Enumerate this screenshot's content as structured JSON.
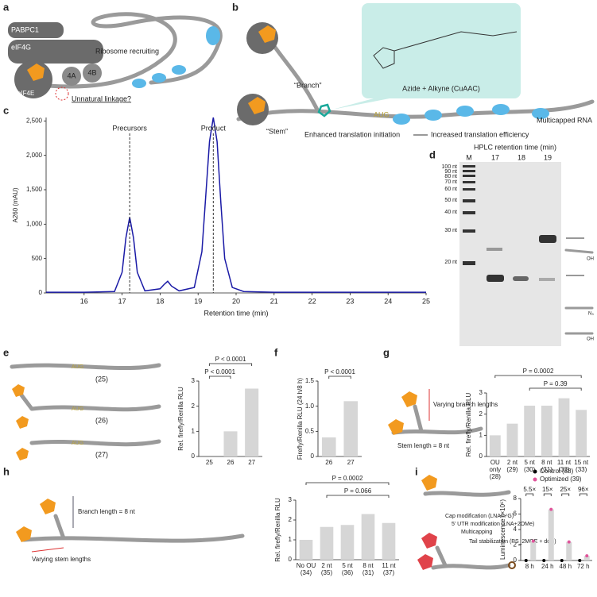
{
  "panel_labels": [
    "a",
    "b",
    "c",
    "d",
    "e",
    "f",
    "g",
    "h",
    "i"
  ],
  "a": {
    "pabpc1": "PABPC1",
    "eif4g": "eIF4G",
    "eif4e": "eIF4E",
    "a4": "4A",
    "b4": "4B",
    "ribosome": "Ribosome recruiting",
    "question": "Unnatural linkage?"
  },
  "b": {
    "branch": "“Branch”",
    "stem": "“Stem”",
    "aug": "AUG",
    "chem": "Azide + Alkyne (CuAAC)",
    "rna": "Multicapped RNA",
    "result1": "Enhanced translation initiation",
    "result2": "Increased translation efficiency"
  },
  "d": {
    "title": "HPLC retention time (min)",
    "lanes": [
      "M",
      "17",
      "18",
      "19"
    ],
    "ladder": [
      "100 nt",
      "90 nt",
      "80 nt",
      "70 nt",
      "60 nt",
      "50 nt",
      "40 nt",
      "30 nt",
      "20 nt"
    ],
    "oh": "OH",
    "n3": "N₃"
  },
  "e": {
    "constructs": [
      "(25)",
      "(26)",
      "(27)"
    ],
    "aug": "AUG"
  },
  "g": {
    "branch": "Varying branch lengths",
    "stem": "Stem length = 8 nt"
  },
  "h": {
    "branch": "Branch length = 8 nt",
    "stem": "Varying stem lengths"
  },
  "i": {
    "steps": [
      "Cap modification (LNAm⁷G)",
      "5′ UTR modification (LNA+2OMe)",
      "Multicapping",
      "Tail stabilization (PS_2MOE + ddC)"
    ]
  },
  "chart_data": [
    {
      "type": "line",
      "xlabel": "Retention time (min)",
      "ylabel": "A260 (mAU)",
      "x": [
        15,
        16,
        16.8,
        17,
        17.1,
        17.2,
        17.3,
        17.4,
        17.6,
        18,
        18.1,
        18.2,
        18.3,
        18.5,
        18.9,
        19.1,
        19.2,
        19.3,
        19.4,
        19.5,
        19.6,
        19.7,
        19.9,
        20.2,
        21,
        22,
        23,
        24,
        25
      ],
      "values": [
        10,
        10,
        20,
        300,
        800,
        1100,
        800,
        300,
        30,
        60,
        120,
        170,
        100,
        30,
        80,
        600,
        1400,
        2200,
        2550,
        2200,
        1300,
        500,
        80,
        20,
        10,
        10,
        10,
        10,
        10
      ],
      "color": "#1a1aa6",
      "xlim": [
        15,
        25
      ],
      "xticks": [
        16,
        17,
        18,
        19,
        20,
        21,
        22,
        23,
        24,
        25
      ],
      "ylim": [
        0,
        2550
      ],
      "yticks": [
        0,
        500,
        {
          "value": 1000,
          "label": "1,000"
        },
        {
          "value": 1500,
          "label": "1,500"
        },
        {
          "value": 2000,
          "label": "2,000"
        },
        {
          "value": 2500,
          "label": "2,500"
        }
      ],
      "annotations": [
        {
          "text": "Precursors",
          "x": 17.2
        },
        {
          "text": "Product",
          "x": 19.4
        }
      ]
    },
    {
      "type": "bar",
      "ylabel": "Rel. firefly/Renilla RLU",
      "categories": [
        "25",
        "26",
        "27"
      ],
      "values": [
        0,
        1.0,
        2.7
      ],
      "color": "#d6d6d6",
      "ylim": [
        0,
        3
      ],
      "yticks": [
        0,
        1,
        2,
        3
      ],
      "annotations": [
        "P < 0.0001",
        "P < 0.0001"
      ]
    },
    {
      "type": "bar",
      "ylabel": "Firefly/Renilla RLU (24 h/8 h)",
      "categories": [
        "26",
        "27"
      ],
      "values": [
        0.38,
        1.1
      ],
      "color": "#d6d6d6",
      "ylim": [
        0,
        1.5
      ],
      "yticks": [
        0,
        0.5,
        {
          "value": 1,
          "label": "1.0"
        },
        1.5
      ],
      "annotations": [
        "P < 0.0001"
      ]
    },
    {
      "type": "bar",
      "ylabel": "Rel. firefly/Renilla RLU",
      "categories": [
        "OU only (28)",
        "2 nt (29)",
        "5 nt (30)",
        "8 nt (31)",
        "11 nt (32)",
        "15 nt (33)"
      ],
      "values": [
        1.0,
        1.55,
        2.4,
        2.4,
        2.75,
        2.2
      ],
      "color": "#d6d6d6",
      "ylim": [
        0,
        3
      ],
      "yticks": [
        0,
        1,
        2,
        3
      ],
      "annotations": [
        "P = 0.0002",
        "P = 0.39"
      ]
    },
    {
      "type": "bar",
      "ylabel": "Rel. firefly/Renilla RLU",
      "categories": [
        "No OU (34)",
        "2 nt (35)",
        "5 nt (36)",
        "8 nt (31)",
        "11 nt (37)"
      ],
      "values": [
        1.0,
        1.65,
        1.75,
        2.3,
        1.85
      ],
      "color": "#d6d6d6",
      "ylim": [
        0,
        3
      ],
      "yticks": [
        0,
        1,
        2,
        3
      ],
      "annotations": [
        "P = 0.0002",
        "P = 0.066"
      ]
    },
    {
      "type": "grouped_bar",
      "ylabel": "Luminescence (×10⁶)",
      "categories": [
        "8 h",
        "24 h",
        "48 h",
        "72 h"
      ],
      "series": [
        {
          "name": "Control (38)",
          "color": "#000000",
          "values": [
            0,
            0,
            0,
            0
          ]
        },
        {
          "name": "Optimized (39)",
          "color": "#e0559b",
          "values": [
            2.5,
            6.6,
            2.4,
            0.6
          ]
        }
      ],
      "color": "#d6d6d6",
      "ylim": [
        0,
        8
      ],
      "yticks": [
        0,
        2,
        4,
        6,
        8
      ],
      "legend": "upper right",
      "annotations": [
        "5.5×",
        "15×",
        "25×",
        "96×"
      ]
    }
  ]
}
